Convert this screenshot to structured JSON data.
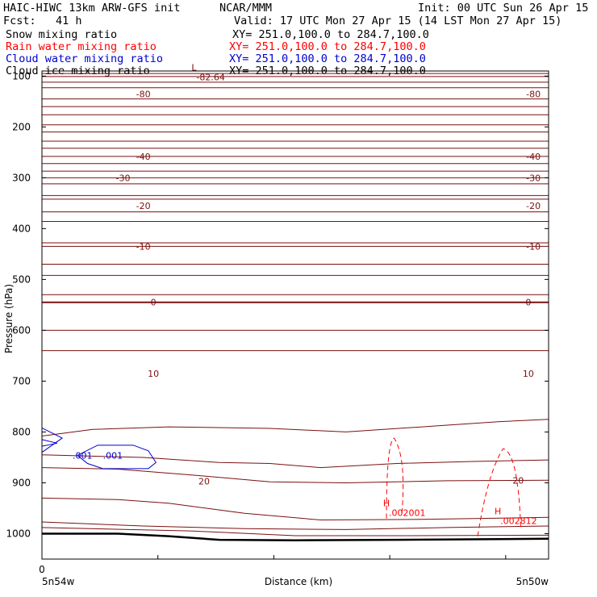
{
  "header": {
    "title_left": "HAIC-HIWC 13km ARW-GFS init",
    "org": "NCAR/MMM",
    "init": "Init: 00 UTC Sun 26 Apr 15",
    "fcst": "Fcst:   41 h",
    "valid": "Valid: 17 UTC Mon 27 Apr 15 (14 LST Mon 27 Apr 15)"
  },
  "fields": [
    {
      "name": "Snow mixing ratio",
      "xy": "XY= 251.0,100.0 to 284.7,100.0",
      "color": "#000000"
    },
    {
      "name": "Rain water mixing ratio",
      "xy": "XY= 251.0,100.0 to 284.7,100.0",
      "color": "#ff0000"
    },
    {
      "name": "Cloud water mixing ratio",
      "xy": "XY= 251.0,100.0 to 284.7,100.0",
      "color": "#0000cc"
    },
    {
      "name": "Cloud ice mixing ratio",
      "xy": "XY= 251.0,100.0 to 284.7,100.0",
      "color": "#000000"
    }
  ],
  "chart_data": {
    "type": "contour",
    "ylabel": "Pressure (hPa)",
    "xlabel": "Distance (km)",
    "x_left_label": "5n54w",
    "x_right_label": "5n50w",
    "x_origin_tick": "0",
    "yticks": [
      100,
      200,
      300,
      400,
      500,
      600,
      700,
      800,
      900,
      1000
    ],
    "ylim": [
      1050,
      90
    ],
    "xlim": [
      0,
      100
    ],
    "colors": {
      "temperature": "#7a1010",
      "rain": "#ff0000",
      "cloud": "#0000cc",
      "terrain": "#000000"
    },
    "temperature_labels": [
      {
        "text": "-80",
        "x": 20,
        "p": 135
      },
      {
        "text": "-80",
        "x": 97,
        "p": 135
      },
      {
        "text": "-40",
        "x": 20,
        "p": 258
      },
      {
        "text": "-40",
        "x": 97,
        "p": 258
      },
      {
        "text": "-30",
        "x": 16,
        "p": 300
      },
      {
        "text": "-30",
        "x": 97,
        "p": 300
      },
      {
        "text": "-20",
        "x": 20,
        "p": 355
      },
      {
        "text": "-20",
        "x": 97,
        "p": 355
      },
      {
        "text": "-10",
        "x": 20,
        "p": 435
      },
      {
        "text": "-10",
        "x": 97,
        "p": 435
      },
      {
        "text": "0",
        "x": 22,
        "p": 545
      },
      {
        "text": "0",
        "x": 96,
        "p": 545
      },
      {
        "text": "10",
        "x": 22,
        "p": 685
      },
      {
        "text": "10",
        "x": 96,
        "p": 685
      },
      {
        "text": "20",
        "x": 32,
        "p": 897
      },
      {
        "text": "20",
        "x": 94,
        "p": 895
      }
    ],
    "extrema": [
      {
        "type": "L",
        "value": "-82.64",
        "x": 30,
        "p": 105,
        "color": "#7a1010"
      },
      {
        "type": "H",
        "value": ".002001",
        "x": 68,
        "p": 962,
        "color": "#ff0000"
      },
      {
        "type": "H",
        "value": ".002812",
        "x": 90,
        "p": 978,
        "color": "#ff0000"
      }
    ],
    "cloud_labels": [
      {
        "text": ".001",
        "x": 8,
        "p": 846
      },
      {
        "text": ".001",
        "x": 14,
        "p": 846
      }
    ]
  }
}
